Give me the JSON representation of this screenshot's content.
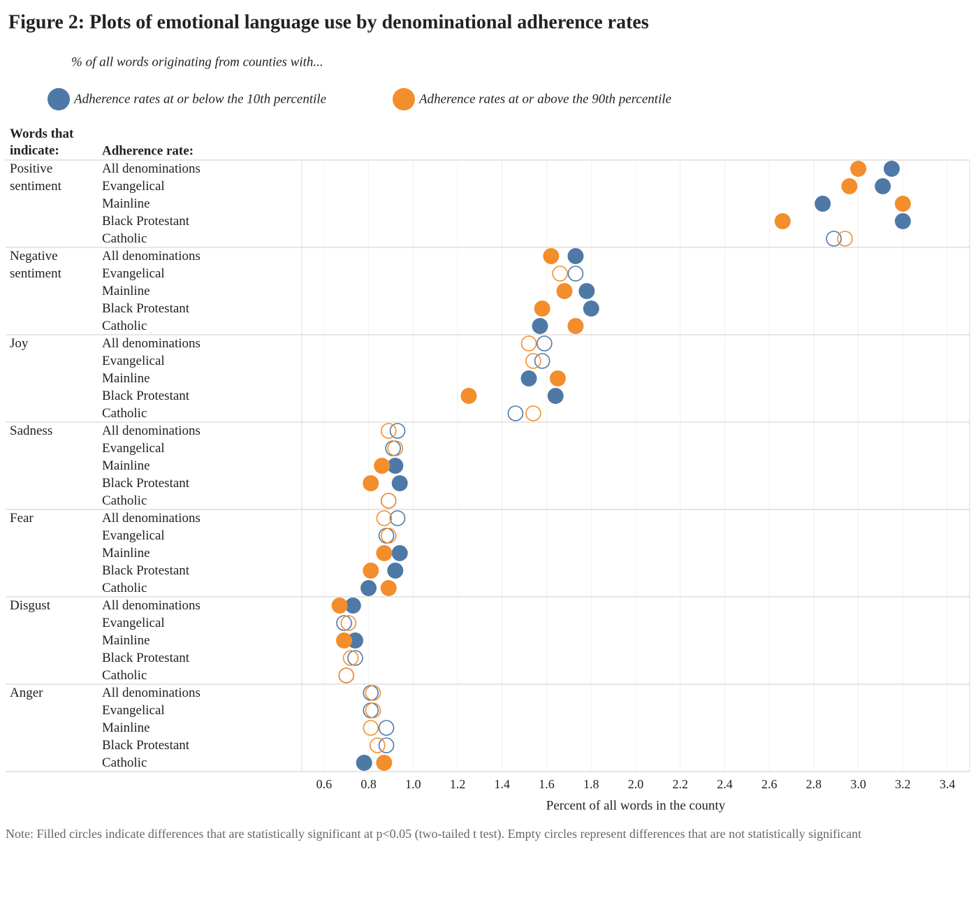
{
  "chart_data": {
    "type": "dot",
    "title": "Figure 2: Plots of emotional language use by denominational adherence rates",
    "subtitle": "% of all words originating from counties with...",
    "row_header": "Words that indicate:",
    "column_header": "Adherence rate:",
    "xlabel": "Percent of all words in the county",
    "note": "Note: Filled circles indicate differences that are statistically significant at p<0.05 (two-tailed t test). Empty circles represent differences that are not statistically significant",
    "xlim": [
      0.5,
      3.5
    ],
    "xticks": [
      0.6,
      0.8,
      {
        "value": 1.0,
        "label": "1.0"
      },
      1.2,
      1.4,
      1.6,
      1.8,
      {
        "value": 2.0,
        "label": "2.0"
      },
      2.2,
      2.4,
      2.6,
      2.8,
      {
        "value": 3.0,
        "label": "3.0"
      },
      3.2,
      3.4
    ],
    "grid": true,
    "groups": [
      {
        "label": "Positive sentiment",
        "categories": [
          "All denominations",
          "Evangelical",
          "Mainline",
          "Black Protestant",
          "Catholic"
        ]
      },
      {
        "label": "Negative sentiment",
        "categories": [
          "All denominations",
          "Evangelical",
          "Mainline",
          "Black Protestant",
          "Catholic"
        ]
      },
      {
        "label": "Joy",
        "categories": [
          "All denominations",
          "Evangelical",
          "Mainline",
          "Black Protestant",
          "Catholic"
        ]
      },
      {
        "label": "Sadness",
        "categories": [
          "All denominations",
          "Evangelical",
          "Mainline",
          "Black Protestant",
          "Catholic"
        ]
      },
      {
        "label": "Fear",
        "categories": [
          "All denominations",
          "Evangelical",
          "Mainline",
          "Black Protestant",
          "Catholic"
        ]
      },
      {
        "label": "Disgust",
        "categories": [
          "All denominations",
          "Evangelical",
          "Mainline",
          "Black Protestant",
          "Catholic"
        ]
      },
      {
        "label": "Anger",
        "categories": [
          "All denominations",
          "Evangelical",
          "Mainline",
          "Black Protestant",
          "Catholic"
        ]
      }
    ],
    "filled": [
      [
        true,
        true,
        true,
        true,
        false
      ],
      [
        true,
        false,
        true,
        true,
        true
      ],
      [
        false,
        false,
        true,
        true,
        false
      ],
      [
        false,
        false,
        true,
        true,
        false
      ],
      [
        false,
        false,
        true,
        true,
        true
      ],
      [
        true,
        false,
        true,
        false,
        false
      ],
      [
        false,
        false,
        false,
        false,
        true
      ]
    ],
    "series": [
      {
        "name": "Adherence rates at or below the 10th percentile",
        "color": "#4e79a7",
        "values": [
          [
            3.15,
            3.11,
            2.84,
            3.2,
            2.89
          ],
          [
            1.73,
            1.73,
            1.78,
            1.8,
            1.57
          ],
          [
            1.59,
            1.58,
            1.52,
            1.64,
            1.46
          ],
          [
            0.93,
            0.91,
            0.92,
            0.94,
            0.89
          ],
          [
            0.93,
            0.88,
            0.94,
            0.92,
            0.8
          ],
          [
            0.73,
            0.69,
            0.74,
            0.74,
            0.7
          ],
          [
            0.81,
            0.81,
            0.88,
            0.88,
            0.78
          ]
        ]
      },
      {
        "name": "Adherence rates at or above the 90th percentile",
        "color": "#f28e2b",
        "values": [
          [
            3.0,
            2.96,
            3.2,
            2.66,
            2.94
          ],
          [
            1.62,
            1.66,
            1.68,
            1.58,
            1.73
          ],
          [
            1.52,
            1.54,
            1.65,
            1.25,
            1.54
          ],
          [
            0.89,
            0.92,
            0.86,
            0.81,
            0.89
          ],
          [
            0.87,
            0.89,
            0.87,
            0.81,
            0.89
          ],
          [
            0.67,
            0.71,
            0.69,
            0.72,
            0.7
          ],
          [
            0.82,
            0.82,
            0.81,
            0.84,
            0.87
          ]
        ]
      }
    ]
  }
}
